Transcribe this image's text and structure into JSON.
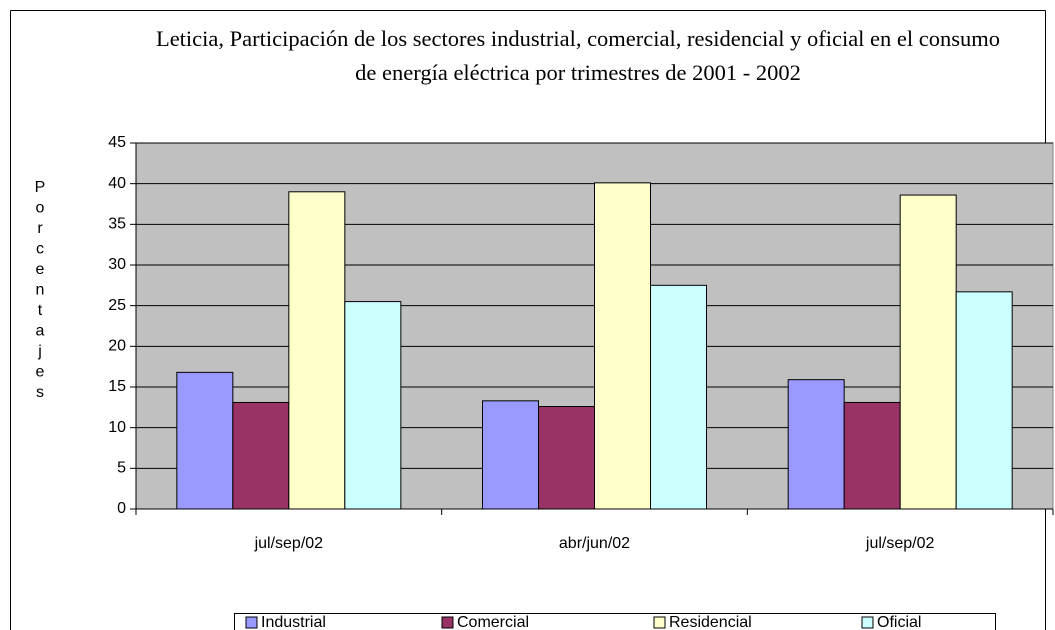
{
  "chart_data": {
    "type": "bar",
    "title": "Leticia, Participación de los sectores industrial, comercial, residencial y oficial en el consumo de energía eléctrica por trimestres de 2001 - 2002",
    "y_label": "Porcentajes",
    "categories": [
      "jul/sep/02",
      "abr/jun/02",
      "jul/sep/02"
    ],
    "series": [
      {
        "name": "Industrial",
        "color": "#9999ff",
        "values": [
          16.8,
          13.3,
          15.9
        ]
      },
      {
        "name": "Comercial",
        "color": "#993366",
        "values": [
          13.1,
          12.6,
          13.1
        ]
      },
      {
        "name": "Residencial",
        "color": "#ffffcc",
        "values": [
          39.0,
          40.1,
          38.6
        ]
      },
      {
        "name": "Oficial",
        "color": "#ccffff",
        "values": [
          25.5,
          27.5,
          26.7
        ]
      }
    ],
    "ylim": [
      0,
      45
    ],
    "yticks": [
      0,
      5,
      10,
      15,
      20,
      25,
      30,
      35,
      40,
      45
    ],
    "grid": true,
    "plot_background": "#c0c0c0",
    "legend": "bottom"
  }
}
